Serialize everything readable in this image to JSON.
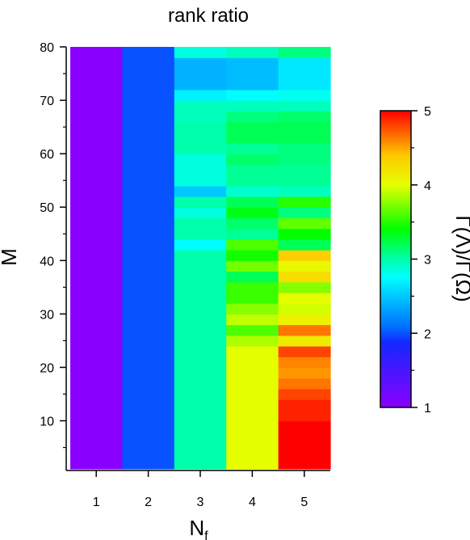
{
  "chart_data": {
    "type": "heatmap",
    "title": "rank ratio",
    "xlabel": "N",
    "xlabel_subscript": "f",
    "ylabel": "M",
    "colorbar_label": "Γ(Λ)/Γ(Ω)",
    "x_categories": [
      "1",
      "2",
      "3",
      "4",
      "5"
    ],
    "y_range": [
      1,
      80
    ],
    "y_ticks": [
      10,
      20,
      30,
      40,
      50,
      60,
      70,
      80
    ],
    "color_range": [
      1,
      5
    ],
    "colorbar_ticks": [
      1,
      2,
      3,
      4,
      5
    ],
    "grid": false,
    "columns": [
      {
        "x": "1",
        "segments": [
          {
            "from": 1,
            "to": 80,
            "value": 1.0
          }
        ]
      },
      {
        "x": "2",
        "segments": [
          {
            "from": 1,
            "to": 80,
            "value": 2.0
          }
        ]
      },
      {
        "x": "3",
        "segments": [
          {
            "from": 1,
            "to": 42,
            "value": 3.0
          },
          {
            "from": 42,
            "to": 44,
            "value": 2.75
          },
          {
            "from": 44,
            "to": 48,
            "value": 3.0
          },
          {
            "from": 48,
            "to": 50,
            "value": 2.85
          },
          {
            "from": 50,
            "to": 52,
            "value": 3.0
          },
          {
            "from": 52,
            "to": 54,
            "value": 2.5
          },
          {
            "from": 54,
            "to": 60,
            "value": 2.85
          },
          {
            "from": 60,
            "to": 66,
            "value": 3.0
          },
          {
            "from": 66,
            "to": 70,
            "value": 2.95
          },
          {
            "from": 70,
            "to": 72,
            "value": 2.7
          },
          {
            "from": 72,
            "to": 78,
            "value": 2.4
          },
          {
            "from": 78,
            "to": 80,
            "value": 2.85
          }
        ]
      },
      {
        "x": "4",
        "segments": [
          {
            "from": 1,
            "to": 24,
            "value": 4.0
          },
          {
            "from": 24,
            "to": 26,
            "value": 3.85
          },
          {
            "from": 26,
            "to": 28,
            "value": 3.6
          },
          {
            "from": 28,
            "to": 30,
            "value": 3.9
          },
          {
            "from": 30,
            "to": 32,
            "value": 3.75
          },
          {
            "from": 32,
            "to": 36,
            "value": 3.55
          },
          {
            "from": 36,
            "to": 38,
            "value": 3.2
          },
          {
            "from": 38,
            "to": 40,
            "value": 3.7
          },
          {
            "from": 40,
            "to": 42,
            "value": 3.45
          },
          {
            "from": 42,
            "to": 44,
            "value": 3.6
          },
          {
            "from": 44,
            "to": 46,
            "value": 3.05
          },
          {
            "from": 46,
            "to": 48,
            "value": 3.15
          },
          {
            "from": 48,
            "to": 50,
            "value": 3.35
          },
          {
            "from": 50,
            "to": 52,
            "value": 3.2
          },
          {
            "from": 52,
            "to": 54,
            "value": 2.9
          },
          {
            "from": 54,
            "to": 58,
            "value": 3.05
          },
          {
            "from": 58,
            "to": 60,
            "value": 3.15
          },
          {
            "from": 60,
            "to": 62,
            "value": 3.05
          },
          {
            "from": 62,
            "to": 66,
            "value": 3.2
          },
          {
            "from": 66,
            "to": 68,
            "value": 3.1
          },
          {
            "from": 68,
            "to": 70,
            "value": 2.95
          },
          {
            "from": 70,
            "to": 72,
            "value": 2.75
          },
          {
            "from": 72,
            "to": 78,
            "value": 2.45
          },
          {
            "from": 78,
            "to": 80,
            "value": 2.95
          }
        ]
      },
      {
        "x": "5",
        "segments": [
          {
            "from": 1,
            "to": 10,
            "value": 5.0
          },
          {
            "from": 10,
            "to": 14,
            "value": 4.9
          },
          {
            "from": 14,
            "to": 16,
            "value": 4.8
          },
          {
            "from": 16,
            "to": 18,
            "value": 4.65
          },
          {
            "from": 18,
            "to": 20,
            "value": 4.55
          },
          {
            "from": 20,
            "to": 22,
            "value": 4.6
          },
          {
            "from": 22,
            "to": 24,
            "value": 4.8
          },
          {
            "from": 24,
            "to": 26,
            "value": 4.15
          },
          {
            "from": 26,
            "to": 28,
            "value": 4.65
          },
          {
            "from": 28,
            "to": 30,
            "value": 4.1
          },
          {
            "from": 30,
            "to": 32,
            "value": 3.95
          },
          {
            "from": 32,
            "to": 34,
            "value": 4.0
          },
          {
            "from": 34,
            "to": 36,
            "value": 3.75
          },
          {
            "from": 36,
            "to": 38,
            "value": 4.25
          },
          {
            "from": 38,
            "to": 40,
            "value": 4.05
          },
          {
            "from": 40,
            "to": 42,
            "value": 4.35
          },
          {
            "from": 42,
            "to": 44,
            "value": 3.2
          },
          {
            "from": 44,
            "to": 46,
            "value": 3.4
          },
          {
            "from": 46,
            "to": 48,
            "value": 3.65
          },
          {
            "from": 48,
            "to": 50,
            "value": 3.1
          },
          {
            "from": 50,
            "to": 52,
            "value": 3.5
          },
          {
            "from": 52,
            "to": 54,
            "value": 2.95
          },
          {
            "from": 54,
            "to": 58,
            "value": 3.05
          },
          {
            "from": 58,
            "to": 62,
            "value": 3.1
          },
          {
            "from": 62,
            "to": 66,
            "value": 3.2
          },
          {
            "from": 66,
            "to": 68,
            "value": 3.15
          },
          {
            "from": 68,
            "to": 70,
            "value": 2.95
          },
          {
            "from": 70,
            "to": 72,
            "value": 2.8
          },
          {
            "from": 72,
            "to": 78,
            "value": 2.65
          },
          {
            "from": 78,
            "to": 80,
            "value": 3.1
          }
        ]
      }
    ]
  }
}
